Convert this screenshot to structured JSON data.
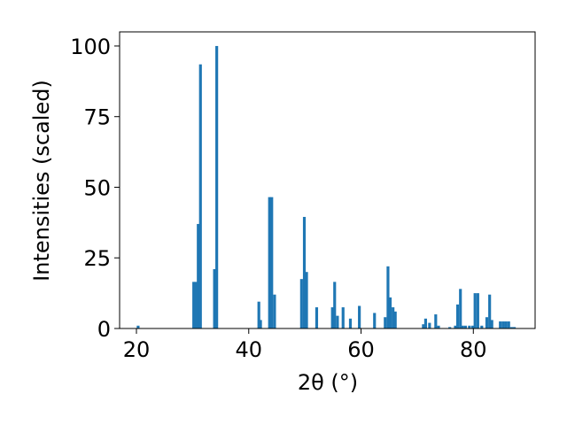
{
  "chart_data": {
    "type": "bar",
    "xlabel": "2θ (°)",
    "ylabel": "Intensities (scaled)",
    "xlim": [
      17.0,
      91.0
    ],
    "ylim": [
      0,
      105
    ],
    "xticks": [
      20,
      40,
      60,
      80
    ],
    "yticks": [
      0,
      25,
      50,
      75,
      100
    ],
    "grid": false,
    "bar_color": "#1f77b4",
    "bar_width": 0.5,
    "x": [
      20.3,
      30.2,
      30.6,
      31.0,
      31.4,
      33.9,
      34.3,
      41.8,
      42.1,
      43.7,
      44.1,
      44.6,
      49.4,
      49.9,
      50.3,
      52.1,
      54.9,
      55.3,
      55.8,
      56.8,
      58.1,
      59.7,
      62.4,
      64.3,
      64.8,
      65.2,
      65.7,
      66.1,
      71.1,
      71.5,
      72.2,
      73.3,
      73.8,
      75.8,
      76.8,
      77.2,
      77.7,
      78.1,
      78.6,
      79.3,
      79.9,
      80.3,
      80.8,
      81.5,
      82.4,
      82.9,
      83.3,
      84.8,
      85.3,
      85.8,
      86.3,
      86.8,
      87.3
    ],
    "values": [
      1,
      16.5,
      16.5,
      37,
      93.5,
      21,
      100,
      9.5,
      3,
      46.5,
      46.5,
      12,
      17.5,
      39.5,
      20,
      7.5,
      7.5,
      16.5,
      4.5,
      7.5,
      3.5,
      8,
      5.5,
      4,
      22,
      11,
      7.5,
      6,
      1.5,
      3.5,
      2,
      5,
      1,
      0.5,
      1,
      8.5,
      14,
      1,
      1,
      1,
      1,
      12.5,
      12.5,
      1,
      4,
      12,
      3,
      2.5,
      2.5,
      2.5,
      2.5,
      0.5,
      0.5
    ]
  }
}
